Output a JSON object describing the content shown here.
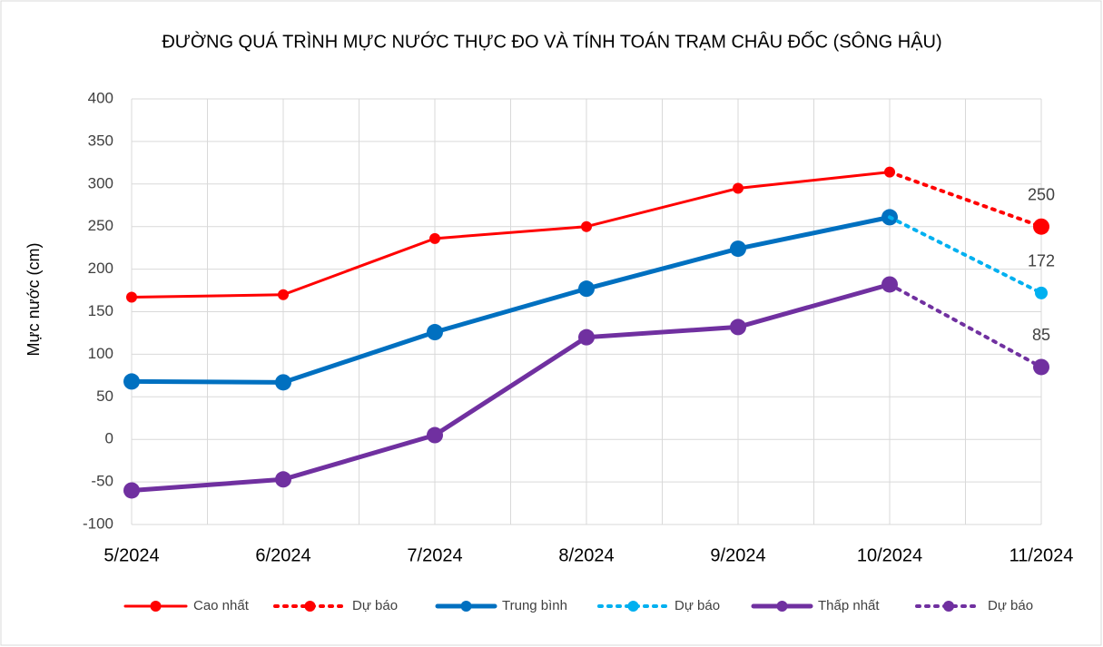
{
  "chart_data": {
    "type": "line",
    "title": "ĐƯỜNG QUÁ TRÌNH MỰC NƯỚC THỰC ĐO VÀ TÍNH TOÁN TRẠM CHÂU ĐỐC (SÔNG HẬU)",
    "y_label": "Mực nước (cm)",
    "categories": [
      "5/2024",
      "6/2024",
      "7/2024",
      "8/2024",
      "9/2024",
      "10/2024",
      "11/2024"
    ],
    "series": [
      {
        "name": "Cao nhất",
        "color": "#ff0000",
        "style": "solid",
        "values": [
          167,
          170,
          236,
          250,
          295,
          314,
          null
        ]
      },
      {
        "name": "Dự báo",
        "color": "#ff0000",
        "style": "dotted",
        "values": [
          null,
          null,
          null,
          null,
          null,
          314,
          250
        ],
        "data_labels": true
      },
      {
        "name": "Trung bình",
        "color": "#0070c0",
        "style": "solid",
        "values": [
          68,
          67,
          126,
          177,
          224,
          261,
          null
        ]
      },
      {
        "name": "Dự báo",
        "color": "#00b0f0",
        "style": "dotted",
        "values": [
          null,
          null,
          null,
          null,
          null,
          261,
          172
        ],
        "data_labels": true
      },
      {
        "name": "Thấp nhất",
        "color": "#7030a0",
        "style": "solid",
        "values": [
          -60,
          -47,
          5,
          120,
          132,
          182,
          null
        ]
      },
      {
        "name": "Dự báo",
        "color": "#7030a0",
        "style": "dotted",
        "values": [
          null,
          null,
          null,
          null,
          null,
          182,
          85
        ],
        "data_labels": true
      }
    ],
    "ylim": [
      -100,
      400
    ],
    "yticks": [
      -100,
      -50,
      0,
      50,
      100,
      150,
      200,
      250,
      300,
      350,
      400
    ],
    "grid": true,
    "legend": "bottom"
  }
}
